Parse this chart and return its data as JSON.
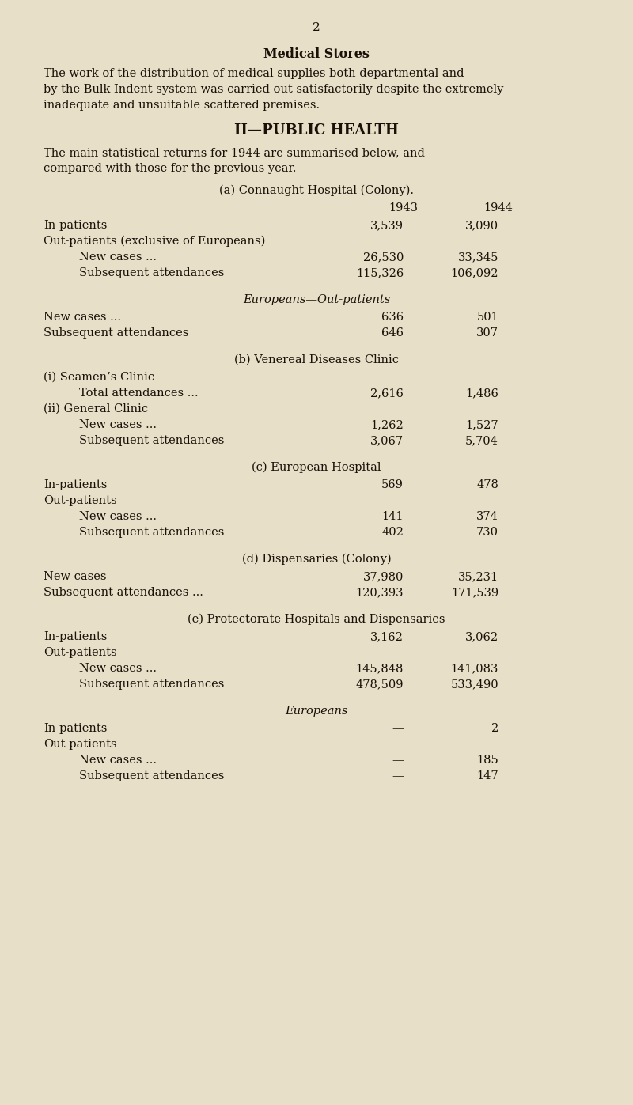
{
  "page_number": "2",
  "bg_color": "#e8dfc8",
  "text_color": "#1a1008",
  "title1": "Medical Stores",
  "para1_lines": [
    "The work of the distribution of medical supplies both departmental and",
    "by the Bulk Indent system was carried out satisfactorily despite the extremely",
    "inadequate and unsuitable scattered premises."
  ],
  "title2": "II—PUBLIC HEALTH",
  "para2_lines": [
    "The main statistical returns for 1944 are summarised below, and",
    "compared with those for the previous year."
  ],
  "sections": [
    {
      "header": "(a) Connaught Hospital (Colony).",
      "header_style": "normal",
      "col1943": "1943",
      "col1944": "1944",
      "show_years": true,
      "rows": [
        {
          "label": "In-patients",
          "indent": 0,
          "dots": "   ...            ...            ...         ...",
          "v1943": "3,539",
          "v1944": "3,090"
        },
        {
          "label": "Out-patients (exclusive of Europeans)",
          "indent": 0,
          "dots": "",
          "v1943": "",
          "v1944": ""
        },
        {
          "label": "New cases ...",
          "indent": 1,
          "dots": "  ...            ...            ...",
          "v1943": "26,530",
          "v1944": "33,345"
        },
        {
          "label": "Subsequent attendances",
          "indent": 1,
          "dots": "   ...            ...",
          "v1943": "115,326",
          "v1944": "106,092"
        }
      ]
    },
    {
      "header": "Europeans—Out-patients",
      "header_style": "italic",
      "show_years": false,
      "rows": [
        {
          "label": "New cases ...",
          "indent": 0,
          "dots": "   ...            ...            ...",
          "v1943": "636",
          "v1944": "501"
        },
        {
          "label": "Subsequent attendances",
          "indent": 0,
          "dots": "   ...            ...",
          "v1943": "646",
          "v1944": "307"
        }
      ]
    },
    {
      "header": "(b) Venereal Diseases Clinic",
      "header_style": "normal",
      "show_years": false,
      "rows": [
        {
          "label": "(i) Seamen’s Clinic",
          "indent": 0,
          "dots": "",
          "v1943": "",
          "v1944": ""
        },
        {
          "label": "Total attendances ...",
          "indent": 1,
          "dots": "   ...            ...",
          "v1943": "2,616",
          "v1944": "1,486"
        },
        {
          "label": "(ii) General Clinic",
          "indent": 0,
          "dots": "",
          "v1943": "",
          "v1944": ""
        },
        {
          "label": "New cases ...",
          "indent": 1,
          "dots": "   ...            ...            ...",
          "v1943": "1,262",
          "v1944": "1,527"
        },
        {
          "label": "Subsequent attendances",
          "indent": 1,
          "dots": "   ...            ...",
          "v1943": "3,067",
          "v1944": "5,704"
        }
      ]
    },
    {
      "header": "(c) European Hospital",
      "header_style": "normal",
      "show_years": false,
      "rows": [
        {
          "label": "In-patients",
          "indent": 0,
          "dots": "   ...            ...            ...         ...",
          "v1943": "569",
          "v1944": "478"
        },
        {
          "label": "Out-patients",
          "indent": 0,
          "dots": "",
          "v1943": "",
          "v1944": ""
        },
        {
          "label": "New cases ...",
          "indent": 1,
          "dots": "   ...            ...            ...",
          "v1943": "141",
          "v1944": "374"
        },
        {
          "label": "Subsequent attendances",
          "indent": 1,
          "dots": "   ...            ...",
          "v1943": "402",
          "v1944": "730"
        }
      ]
    },
    {
      "header": "(d) Dispensaries (Colony)",
      "header_style": "normal",
      "show_years": false,
      "rows": [
        {
          "label": "New cases",
          "indent": 0,
          "dots": "   ...            ...            ...         ...",
          "v1943": "37,980",
          "v1944": "35,231"
        },
        {
          "label": "Subsequent attendances ...",
          "indent": 0,
          "dots": "   ...            ...",
          "v1943": "120,393",
          "v1944": "171,539"
        }
      ]
    },
    {
      "header": "(e) Protectorate Hospitals and Dispensaries",
      "header_style": "normal",
      "show_years": false,
      "rows": [
        {
          "label": "In-patients",
          "indent": 0,
          "dots": "   ...            ...            ...         ...",
          "v1943": "3,162",
          "v1944": "3,062"
        },
        {
          "label": "Out-patients",
          "indent": 0,
          "dots": "",
          "v1943": "",
          "v1944": ""
        },
        {
          "label": "New cases ...",
          "indent": 1,
          "dots": "   ...            ...            ...",
          "v1943": "145,848",
          "v1944": "141,083"
        },
        {
          "label": "Subsequent attendances",
          "indent": 1,
          "dots": "   ...            ...",
          "v1943": "478,509",
          "v1944": "533,490"
        }
      ]
    },
    {
      "header": "Europeans",
      "header_style": "italic",
      "show_years": false,
      "rows": [
        {
          "label": "In-patients",
          "indent": 0,
          "dots": "   ...            ...            ...         ...",
          "v1943": "—",
          "v1944": "2"
        },
        {
          "label": "Out-patients",
          "indent": 0,
          "dots": "",
          "v1943": "",
          "v1944": ""
        },
        {
          "label": "New cases ...",
          "indent": 1,
          "dots": "   ...            ...            ...",
          "v1943": "—",
          "v1944": "185"
        },
        {
          "label": "Subsequent attendances",
          "indent": 1,
          "dots": "",
          "v1943": "—",
          "v1944": "147"
        }
      ]
    }
  ]
}
